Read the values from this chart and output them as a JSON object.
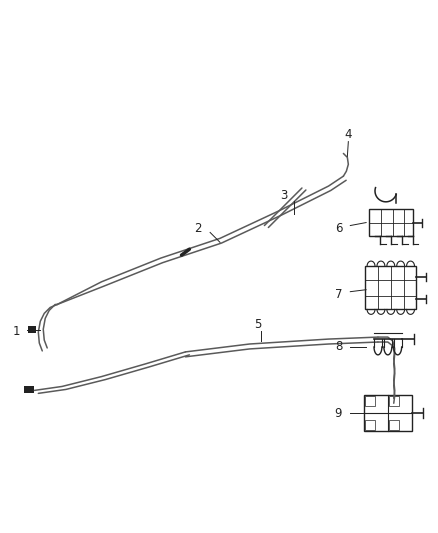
{
  "bg_color": "#ffffff",
  "fig_width": 4.38,
  "fig_height": 5.33,
  "dpi": 100,
  "line_color": "#5a5a5a",
  "dark_color": "#222222",
  "callout_color": "#222222",
  "callout_font_size": 8.5
}
